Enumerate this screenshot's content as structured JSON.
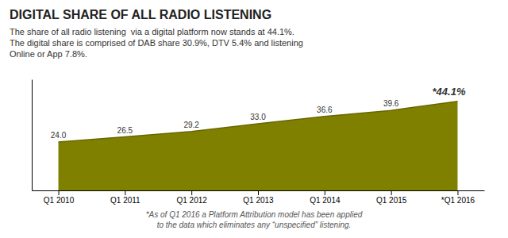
{
  "chart_data": {
    "type": "area",
    "title": "DIGITAL SHARE OF ALL RADIO LISTENING",
    "subtitle": [
      "The share of all radio listening  via a digital platform now stands at 44.1%.",
      "The digital share is comprised of DAB share 30.9%, DTV 5.4% and listening",
      "Online or App 7.8%."
    ],
    "categories": [
      "Q1 2010",
      "Q1 2011",
      "Q1 2012",
      "Q1 2013",
      "Q1 2014",
      "Q1 2015",
      "*Q1 2016"
    ],
    "values": [
      24.0,
      26.5,
      29.2,
      33.0,
      36.6,
      39.6,
      44.1
    ],
    "value_labels": [
      "24.0",
      "26.5",
      "29.2",
      "33.0",
      "36.6",
      "39.6",
      "*44.1%"
    ],
    "data_labels": true,
    "color": "#808000",
    "ylim": [
      0,
      55
    ],
    "tick_labels": "x",
    "annotations": [
      "*As of Q1 2016 a Platform Attribution model has been applied",
      "to the data which eliminates any “unspecified” listening."
    ]
  }
}
